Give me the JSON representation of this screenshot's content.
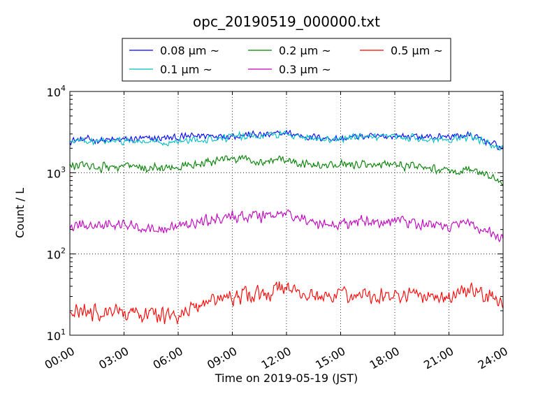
{
  "chart_data": {
    "type": "line",
    "title": "opc_20190519_000000.txt",
    "xlabel": "Time on 2019-05-19 (JST)",
    "ylabel": "Count / L",
    "yscale": "log",
    "xlim": [
      "2019-05-19 00:00",
      "2019-05-20 00:00"
    ],
    "ylim": [
      10,
      10000
    ],
    "grid": true,
    "legend_position": "top",
    "x_ticks": [
      "00:00",
      "03:00",
      "06:00",
      "09:00",
      "12:00",
      "15:00",
      "18:00",
      "21:00",
      "24:00"
    ],
    "y_ticks": [
      {
        "base": "10",
        "exp": "1",
        "value": 10
      },
      {
        "base": "10",
        "exp": "2",
        "value": 100
      },
      {
        "base": "10",
        "exp": "3",
        "value": 1000
      },
      {
        "base": "10",
        "exp": "4",
        "value": 10000
      }
    ],
    "x": [
      "00:00",
      "01:00",
      "02:00",
      "03:00",
      "04:00",
      "05:00",
      "06:00",
      "07:00",
      "08:00",
      "09:00",
      "10:00",
      "11:00",
      "12:00",
      "13:00",
      "14:00",
      "15:00",
      "16:00",
      "17:00",
      "18:00",
      "19:00",
      "20:00",
      "21:00",
      "22:00",
      "23:00",
      "24:00"
    ],
    "series": [
      {
        "name": "0.08 μm ~",
        "color": "#0000ff",
        "values": [
          2500,
          2550,
          2500,
          2550,
          2600,
          2650,
          2700,
          2850,
          2900,
          2850,
          2950,
          2900,
          3100,
          2800,
          2700,
          2600,
          2800,
          2750,
          2850,
          2800,
          2750,
          2800,
          2900,
          2500,
          2000
        ]
      },
      {
        "name": "0.1 μm ~",
        "color": "#00bfbf",
        "values": [
          2400,
          2450,
          2400,
          2450,
          2400,
          2350,
          2400,
          2550,
          2650,
          2750,
          2850,
          2850,
          3050,
          2750,
          2650,
          2550,
          2750,
          2650,
          2750,
          2700,
          2600,
          2650,
          2750,
          2400,
          1950
        ]
      },
      {
        "name": "0.2 μm ~",
        "color": "#008000",
        "values": [
          1220,
          1200,
          1180,
          1200,
          1150,
          1150,
          1150,
          1300,
          1400,
          1450,
          1450,
          1400,
          1500,
          1300,
          1200,
          1250,
          1300,
          1250,
          1250,
          1200,
          1100,
          1050,
          1100,
          950,
          750
        ]
      },
      {
        "name": "0.3 μm ~",
        "color": "#bf00bf",
        "values": [
          215,
          220,
          220,
          225,
          215,
          210,
          215,
          245,
          270,
          285,
          295,
          280,
          320,
          260,
          230,
          235,
          260,
          245,
          260,
          240,
          220,
          215,
          240,
          200,
          155
        ]
      },
      {
        "name": "0.5 μm ~",
        "color": "#ff0000",
        "values": [
          19,
          19,
          19,
          19,
          18,
          17.5,
          18,
          22,
          28,
          29,
          32,
          32,
          40,
          32,
          28,
          30,
          33,
          30,
          33,
          31,
          29,
          29,
          36,
          32,
          27
        ]
      }
    ]
  }
}
